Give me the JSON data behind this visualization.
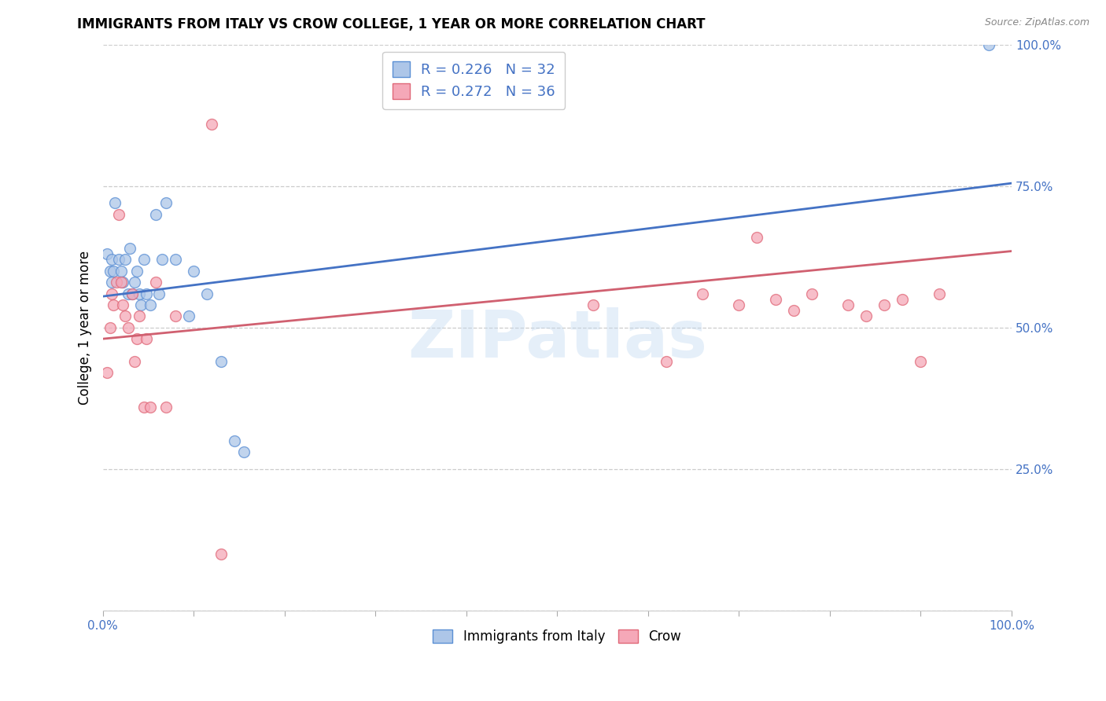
{
  "title": "IMMIGRANTS FROM ITALY VS CROW COLLEGE, 1 YEAR OR MORE CORRELATION CHART",
  "source": "Source: ZipAtlas.com",
  "ylabel": "College, 1 year or more",
  "xlabel_label_blue": "Immigrants from Italy",
  "xlabel_label_pink": "Crow",
  "legend_blue_R": 0.226,
  "legend_blue_N": 32,
  "legend_pink_R": 0.272,
  "legend_pink_N": 36,
  "xlim": [
    0.0,
    1.0
  ],
  "ylim": [
    0.0,
    1.0
  ],
  "ytick_vals": [
    0.0,
    0.25,
    0.5,
    0.75,
    1.0
  ],
  "ytick_labels_right": [
    "",
    "25.0%",
    "50.0%",
    "75.0%",
    "100.0%"
  ],
  "xtick_vals": [
    0.0,
    0.1,
    0.2,
    0.3,
    0.4,
    0.5,
    0.6,
    0.7,
    0.8,
    0.9,
    1.0
  ],
  "xtick_edge_labels": {
    "0": "0.0%",
    "1.0": "100.0%"
  },
  "watermark": "ZIPatlas",
  "blue_scatter_x": [
    0.005,
    0.008,
    0.01,
    0.01,
    0.012,
    0.013,
    0.018,
    0.02,
    0.022,
    0.025,
    0.028,
    0.03,
    0.032,
    0.035,
    0.038,
    0.04,
    0.042,
    0.045,
    0.048,
    0.052,
    0.058,
    0.062,
    0.065,
    0.07,
    0.08,
    0.095,
    0.1,
    0.115,
    0.13,
    0.145,
    0.155,
    0.975
  ],
  "blue_scatter_y": [
    0.63,
    0.6,
    0.62,
    0.58,
    0.6,
    0.72,
    0.62,
    0.6,
    0.58,
    0.62,
    0.56,
    0.64,
    0.56,
    0.58,
    0.6,
    0.56,
    0.54,
    0.62,
    0.56,
    0.54,
    0.7,
    0.56,
    0.62,
    0.72,
    0.62,
    0.52,
    0.6,
    0.56,
    0.44,
    0.3,
    0.28,
    1.0
  ],
  "pink_scatter_x": [
    0.005,
    0.008,
    0.01,
    0.012,
    0.015,
    0.018,
    0.02,
    0.022,
    0.025,
    0.028,
    0.032,
    0.035,
    0.038,
    0.04,
    0.045,
    0.048,
    0.052,
    0.058,
    0.07,
    0.08,
    0.12,
    0.54,
    0.62,
    0.66,
    0.7,
    0.72,
    0.74,
    0.76,
    0.78,
    0.82,
    0.84,
    0.86,
    0.88,
    0.9,
    0.92,
    0.13
  ],
  "pink_scatter_y": [
    0.42,
    0.5,
    0.56,
    0.54,
    0.58,
    0.7,
    0.58,
    0.54,
    0.52,
    0.5,
    0.56,
    0.44,
    0.48,
    0.52,
    0.36,
    0.48,
    0.36,
    0.58,
    0.36,
    0.52,
    0.86,
    0.54,
    0.44,
    0.56,
    0.54,
    0.66,
    0.55,
    0.53,
    0.56,
    0.54,
    0.52,
    0.54,
    0.55,
    0.44,
    0.56,
    0.1
  ],
  "blue_line_x": [
    0.0,
    1.0
  ],
  "blue_line_y": [
    0.555,
    0.755
  ],
  "pink_line_x": [
    0.0,
    1.0
  ],
  "pink_line_y": [
    0.48,
    0.635
  ],
  "blue_scatter_color": "#adc6e8",
  "blue_edge_color": "#5b8fd4",
  "pink_scatter_color": "#f5a8b8",
  "pink_edge_color": "#e06878",
  "blue_line_color": "#4472c4",
  "pink_line_color": "#d06070",
  "grid_color": "#cccccc",
  "background_color": "#ffffff",
  "title_fontsize": 12,
  "ylabel_fontsize": 12,
  "tick_fontsize": 11,
  "scatter_size": 100,
  "scatter_alpha": 0.75
}
